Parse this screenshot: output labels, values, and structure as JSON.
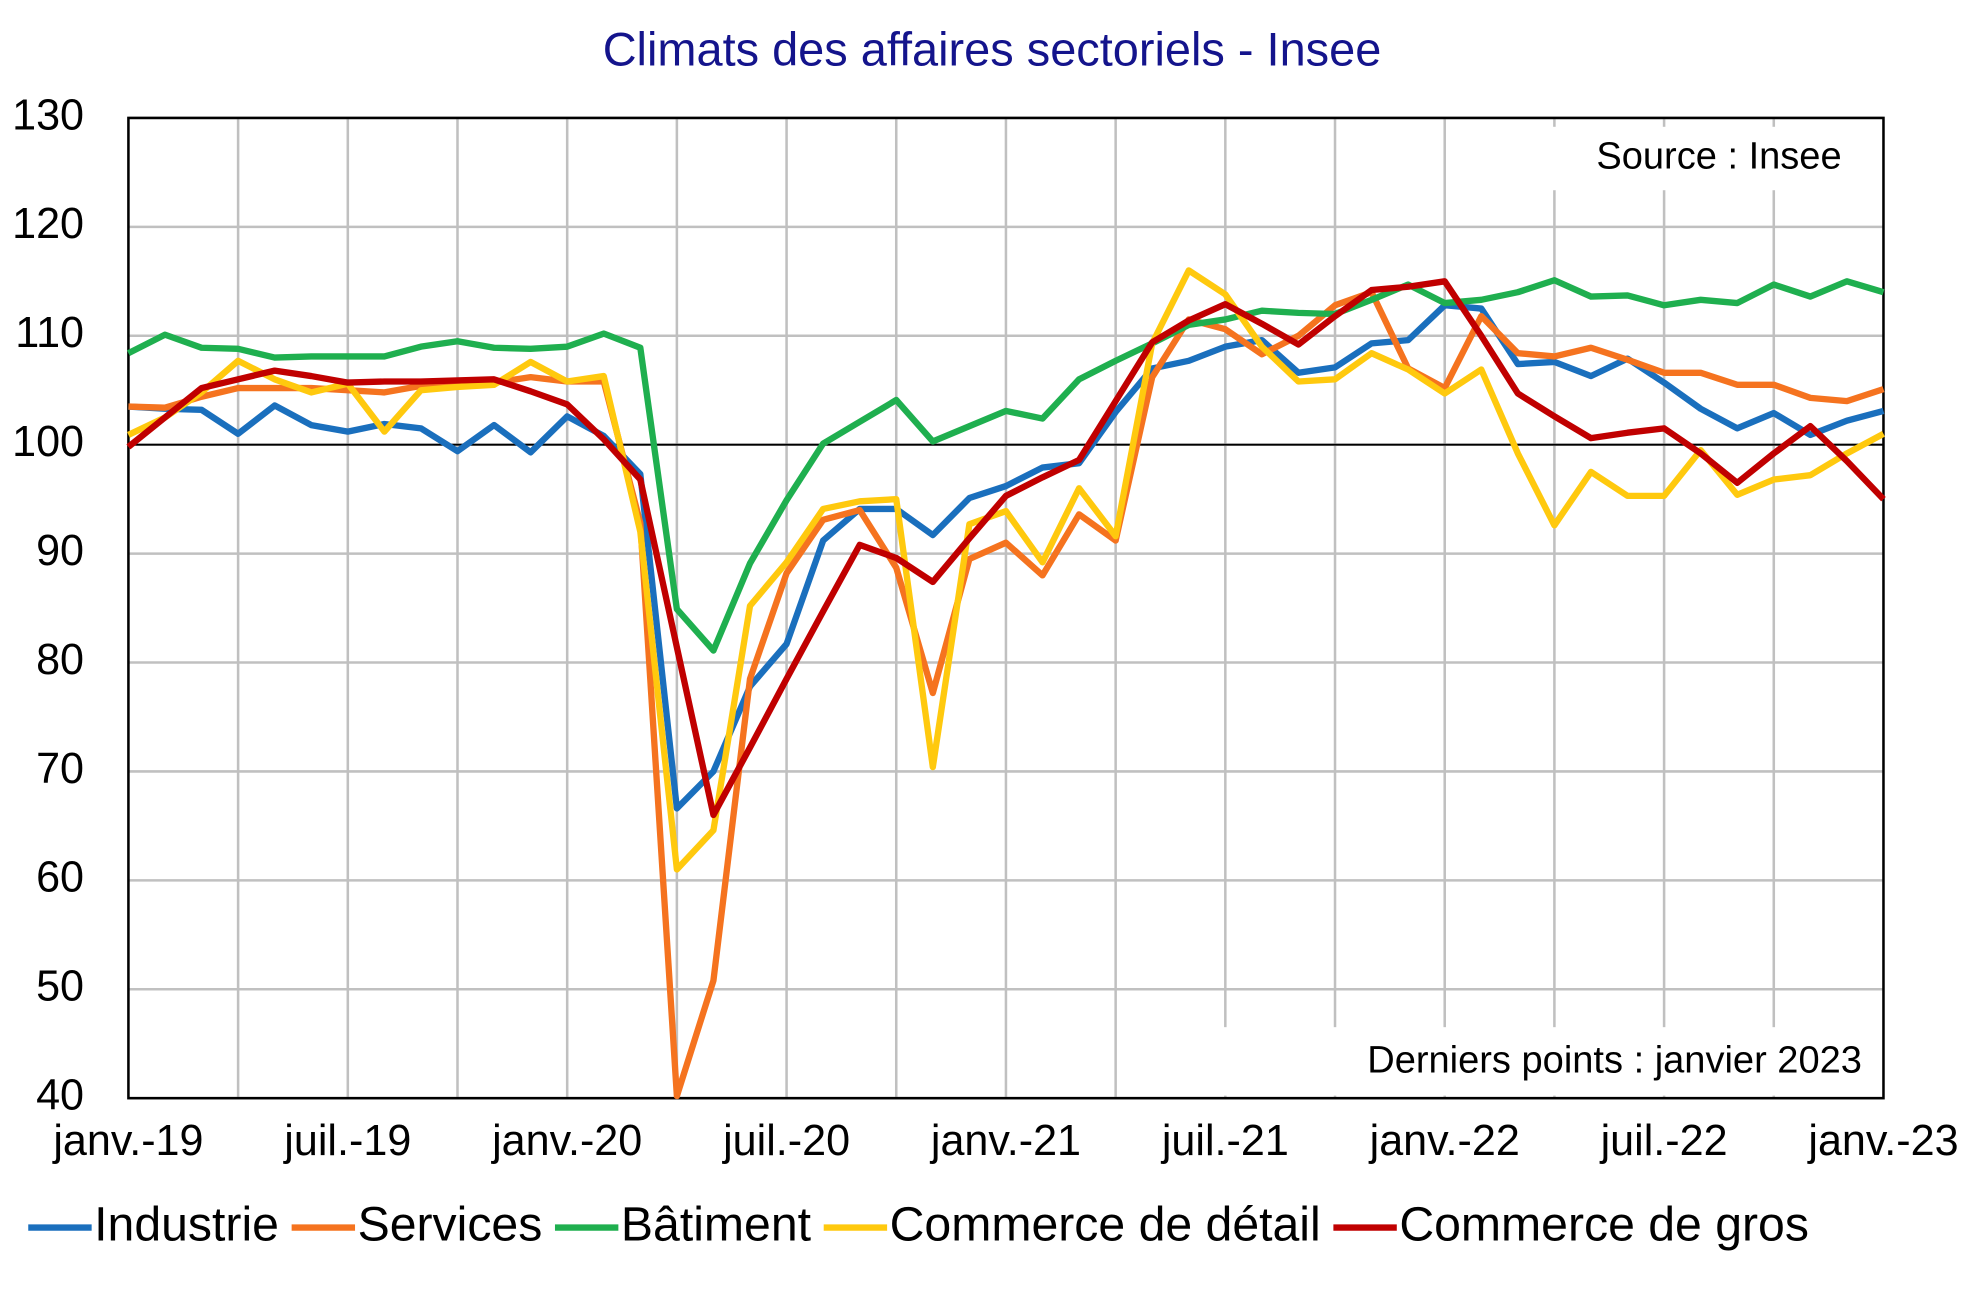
{
  "chart_data": {
    "type": "line",
    "title": "Climats des affaires sectoriels - Insee",
    "annotations": [
      "Source : Insee",
      "Derniers points : janvier 2023"
    ],
    "categories": [
      "janv.-19",
      null,
      null,
      null,
      null,
      null,
      "juil.-19",
      null,
      null,
      null,
      null,
      null,
      "janv.-20",
      null,
      null,
      null,
      null,
      null,
      "juil.-20",
      null,
      null,
      null,
      null,
      null,
      "janv.-21",
      null,
      null,
      null,
      null,
      null,
      "juil.-21",
      null,
      null,
      null,
      null,
      null,
      "janv.-22",
      null,
      null,
      null,
      null,
      null,
      "juil.-22",
      null,
      null,
      null,
      null,
      null,
      "janv.-23"
    ],
    "ylim": [
      40,
      130
    ],
    "yticks": [
      40,
      50,
      60,
      70,
      80,
      90,
      100,
      110,
      120,
      130
    ],
    "reference_line": 100,
    "grid": true,
    "legend": "bottom",
    "series": [
      {
        "name": "Industrie",
        "color": "#1a6fbd",
        "values": [
          103.5,
          103.3,
          103.2,
          101,
          103.6,
          101.8,
          101.2,
          101.9,
          101.5,
          99.4,
          101.8,
          99.3,
          102.6,
          100.8,
          97.3,
          66.6,
          70,
          77.8,
          81.7,
          91.2,
          94.1,
          94.1,
          91.7,
          95.1,
          96.2,
          97.9,
          98.3,
          103,
          107,
          107.7,
          109,
          109.6,
          106.6,
          107.1,
          109.3,
          109.6,
          112.8,
          112.5,
          107.4,
          107.6,
          106.3,
          107.9,
          105.7,
          103.3,
          101.5,
          102.9,
          100.9,
          102.2,
          103.1
        ]
      },
      {
        "name": "Services",
        "color": "#f5731f",
        "values": [
          103.5,
          103.4,
          104.4,
          105.2,
          105.2,
          105.2,
          105,
          104.8,
          105.4,
          105.8,
          105.7,
          106.2,
          105.8,
          105.8,
          92.8,
          40.2,
          50.8,
          78.5,
          88.2,
          93.1,
          94,
          88.7,
          77.2,
          89.5,
          91,
          88,
          93.6,
          91.2,
          106.2,
          111.5,
          110.6,
          108.3,
          110,
          112.8,
          114,
          107,
          105.2,
          111.8,
          108.4,
          108.1,
          108.9,
          107.8,
          106.6,
          106.6,
          105.5,
          105.5,
          104.3,
          104,
          105.1
        ]
      },
      {
        "name": "Bâtiment",
        "color": "#1faf4f",
        "values": [
          108.4,
          110.1,
          108.9,
          108.8,
          108,
          108.1,
          108.1,
          108.1,
          109,
          109.5,
          108.9,
          108.8,
          109,
          110.2,
          108.9,
          84.9,
          81.1,
          89.1,
          94.9,
          100.1,
          102.1,
          104.1,
          100.3,
          101.7,
          103.1,
          102.4,
          106,
          107.7,
          109.3,
          111,
          111.5,
          112.3,
          112.1,
          112,
          113.3,
          114.7,
          113,
          113.3,
          114,
          115.1,
          113.6,
          113.7,
          112.8,
          113.3,
          113,
          114.7,
          113.6,
          115,
          114
        ]
      },
      {
        "name": "Commerce de détail",
        "color": "#ffc90e",
        "values": [
          100.9,
          102.5,
          104.8,
          107.7,
          106,
          104.8,
          105.6,
          101.2,
          105,
          105.3,
          105.5,
          107.6,
          105.8,
          106.3,
          92,
          61,
          64.6,
          85.2,
          89.2,
          94.1,
          94.8,
          95,
          70.4,
          92.7,
          93.9,
          89.2,
          96,
          91.6,
          109.3,
          116,
          113.8,
          109,
          105.8,
          106,
          108.4,
          106.9,
          104.7,
          106.9,
          99.2,
          92.6,
          97.5,
          95.3,
          95.3,
          99.5,
          95.4,
          96.8,
          97.2,
          99.2,
          101
        ]
      },
      {
        "name": "Commerce de gros",
        "color": "#c00000",
        "values": [
          99.8,
          102.5,
          105.2,
          106,
          106.8,
          106.3,
          105.7,
          105.8,
          105.8,
          105.9,
          106,
          104.9,
          103.7,
          100.5,
          96.8,
          81.4,
          66,
          72.2,
          78.5,
          84.7,
          90.8,
          89.6,
          87.4,
          91.4,
          95.3,
          97,
          98.6,
          104,
          109.4,
          111.4,
          112.9,
          111.1,
          109.2,
          111.8,
          114.2,
          114.5,
          115,
          110,
          104.7,
          102.6,
          100.6,
          101.1,
          101.5,
          99.2,
          96.5,
          99.2,
          101.7,
          98.5,
          95
        ]
      }
    ]
  }
}
